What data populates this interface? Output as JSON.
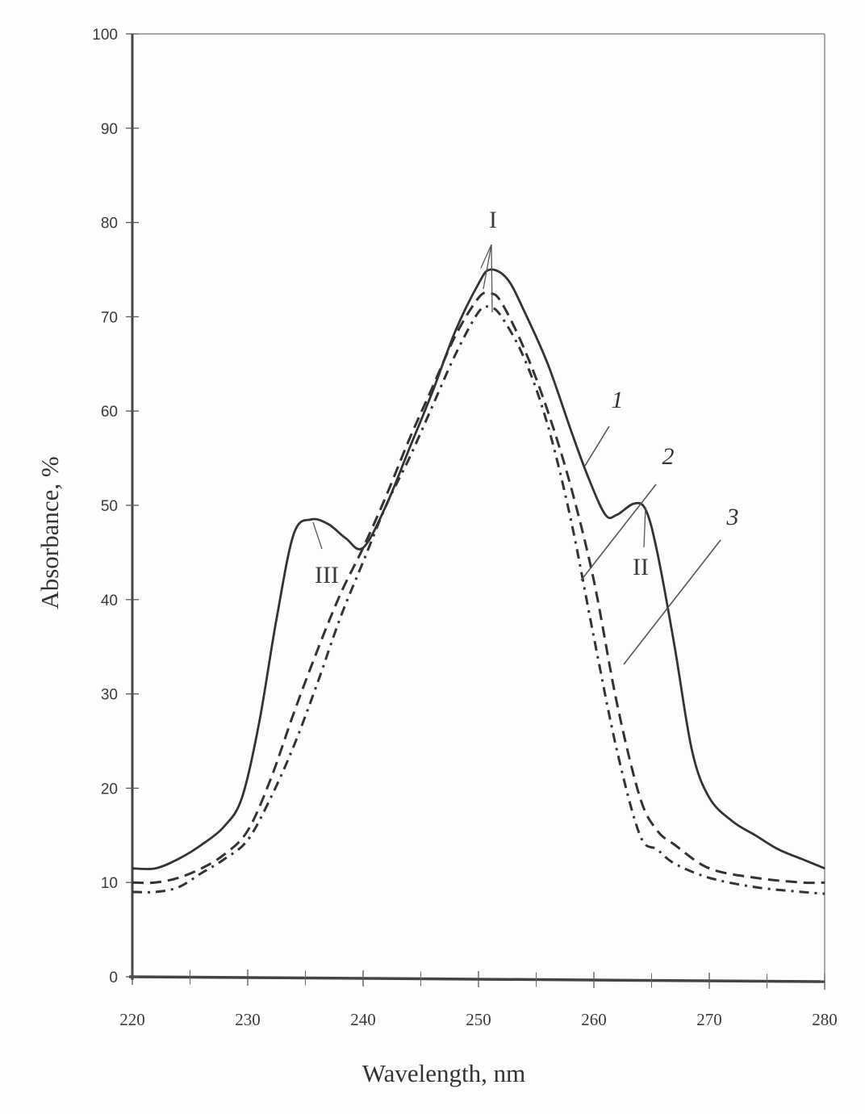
{
  "chart_data": {
    "type": "line",
    "title": "",
    "xlabel": "Wavelength, nm",
    "ylabel": "Absorbance, %",
    "xlim": [
      220,
      280
    ],
    "ylim": [
      0,
      100
    ],
    "x_ticks": [
      220,
      230,
      240,
      250,
      260,
      270,
      280
    ],
    "x_minor_ticks": [
      225,
      235,
      245,
      255,
      265,
      275
    ],
    "y_ticks": [
      0,
      10,
      20,
      30,
      40,
      50,
      60,
      70,
      80,
      90,
      100
    ],
    "grid": false,
    "legend": "none (curves labeled inline 1, 2, 3)",
    "series": [
      {
        "name": "1",
        "style": "solid",
        "x": [
          220,
          222,
          224,
          226,
          228,
          229.5,
          231,
          232.5,
          234,
          235.5,
          237,
          238.5,
          240,
          242,
          244,
          246,
          248,
          250,
          251,
          252.5,
          254,
          256,
          258,
          259.5,
          261,
          262,
          263.5,
          264.5,
          265.5,
          267,
          268.5,
          270,
          272,
          274,
          276,
          278,
          280
        ],
        "y": [
          11.5,
          11.5,
          12.5,
          14,
          16,
          19,
          27,
          38,
          47,
          48.5,
          48,
          46.5,
          45.5,
          50,
          56,
          62,
          68.5,
          73.5,
          75,
          74,
          70.5,
          65,
          58,
          53,
          49,
          49,
          50.2,
          49.5,
          45,
          35,
          24,
          19,
          16.5,
          15,
          13.5,
          12.5,
          11.5
        ]
      },
      {
        "name": "2",
        "style": "dashed",
        "x": [
          220,
          222,
          224,
          226,
          228,
          230,
          232,
          234,
          236,
          238,
          240,
          242,
          244,
          246,
          248,
          250,
          251,
          252,
          254,
          256,
          258,
          260,
          262,
          264,
          265.5,
          267,
          270,
          274,
          278,
          280
        ],
        "y": [
          10,
          10,
          10.5,
          11.5,
          13,
          15.5,
          21,
          28,
          34.5,
          40.5,
          45.5,
          51,
          57,
          62.5,
          68,
          72,
          72.5,
          71.5,
          66.5,
          60,
          52,
          42,
          29,
          19,
          15.5,
          14,
          11.5,
          10.5,
          10,
          10
        ]
      },
      {
        "name": "3",
        "style": "dash-dot",
        "x": [
          220,
          222,
          224,
          226,
          228,
          230,
          232,
          234,
          236,
          238,
          240,
          242,
          244,
          246,
          248,
          250,
          251,
          252,
          254,
          256,
          258,
          260,
          262,
          264,
          265.5,
          267,
          270,
          274,
          278,
          280
        ],
        "y": [
          9,
          9,
          9.5,
          11,
          12.5,
          14.5,
          19,
          24.5,
          31,
          38,
          44,
          50,
          55,
          60.5,
          66,
          70.5,
          71,
          70,
          65.5,
          58.5,
          48.5,
          36,
          24,
          15,
          13.5,
          12,
          10.5,
          9.5,
          9,
          8.8
        ]
      }
    ],
    "annotations": [
      {
        "text": "I",
        "x": 251,
        "y": 80,
        "points_to": "peaks of curves 1, 2, 3 at ~250.5 nm"
      },
      {
        "text": "II",
        "x": 264,
        "y": 41.5,
        "points_to": "curve 1 shoulder at ~263.5 nm"
      },
      {
        "text": "III",
        "x": 237,
        "y": 41.5,
        "points_to": "curve 1 shoulder at ~235.5 nm"
      },
      {
        "text": "1",
        "x": 262,
        "y": 61
      },
      {
        "text": "2",
        "x": 266,
        "y": 54
      },
      {
        "text": "3",
        "x": 271,
        "y": 48
      }
    ]
  },
  "labels": {
    "xlabel": "Wavelength, nm",
    "ylabel": "Absorbance, %",
    "ann_I": "I",
    "ann_II": "II",
    "ann_III": "III",
    "ann_1": "1",
    "ann_2": "2",
    "ann_3": "3"
  },
  "colors": {
    "ink": "#333333",
    "background": "#fdfdfd"
  }
}
